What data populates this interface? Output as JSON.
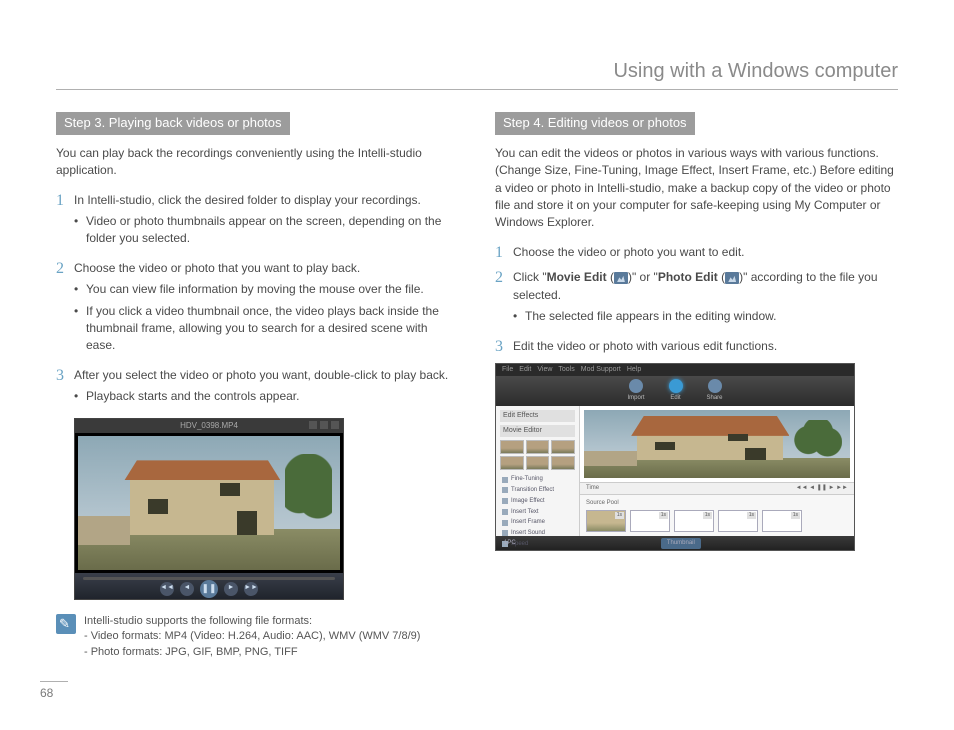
{
  "page": {
    "title": "Using with a Windows computer",
    "number": "68"
  },
  "left": {
    "step_header": "Step 3. Playing back videos or photos",
    "intro": "You can play back the recordings conveniently using the Intelli-studio application.",
    "items": [
      {
        "num": "1",
        "text": "In Intelli-studio, click the desired folder to display your recordings.",
        "bullets": [
          "Video or photo thumbnails appear on the screen, depending on the folder you selected."
        ]
      },
      {
        "num": "2",
        "text": "Choose the video or photo that you want to play back.",
        "bullets": [
          "You can view file information by moving the mouse over the file.",
          "If you click a video thumbnail once, the video plays back inside the thumbnail frame, allowing you to search for a desired scene with ease."
        ]
      },
      {
        "num": "3",
        "text": "After you select the video or photo you want, double-click to play back.",
        "bullets": [
          "Playback starts and the controls appear."
        ]
      }
    ],
    "player_title": "HDV_0398.MP4",
    "note": {
      "line1": "Intelli-studio supports the following file formats:",
      "line2": "- Video formats: MP4 (Video: H.264, Audio: AAC), WMV (WMV 7/8/9)",
      "line3": "- Photo formats: JPG, GIF, BMP, PNG, TIFF"
    }
  },
  "right": {
    "step_header": "Step 4. Editing videos or photos",
    "intro": "You can edit the videos or photos in various ways with various functions. (Change Size, Fine-Tuning, Image Effect, Insert Frame, etc.) Before editing a video or photo in Intelli-studio, make a backup copy of the video or photo file and store it on your computer for safe-keeping using My Computer or Windows Explorer.",
    "items": [
      {
        "num": "1",
        "text": "Choose the video or photo you want to edit.",
        "bullets": []
      },
      {
        "num": "2",
        "pre": "Click \"",
        "bold1": "Movie Edit",
        "mid": " (",
        "mid2": ")\" or \"",
        "bold2": "Photo Edit",
        "mid3": " (",
        "post": ")\" according to the file you selected.",
        "bullets": [
          "The selected file appears in the editing window."
        ]
      },
      {
        "num": "3",
        "text": "Edit the video or photo with various edit functions.",
        "bullets": []
      }
    ],
    "editor": {
      "menus": [
        "File",
        "Edit",
        "View",
        "Tools",
        "Mod Support",
        "Help"
      ],
      "tabs": [
        "Import",
        "Edit",
        "Share"
      ],
      "side_title1": "Edit Effects",
      "side_title2": "Movie Editor",
      "fx": [
        "Fine-Tuning",
        "Transition Effect",
        "Image Effect",
        "Insert Text",
        "Insert Frame",
        "Insert Sound",
        "Speed"
      ],
      "timeline_label": "Source Pool",
      "footer_left": "1PC",
      "footer_tab": "Thumbnail"
    }
  }
}
